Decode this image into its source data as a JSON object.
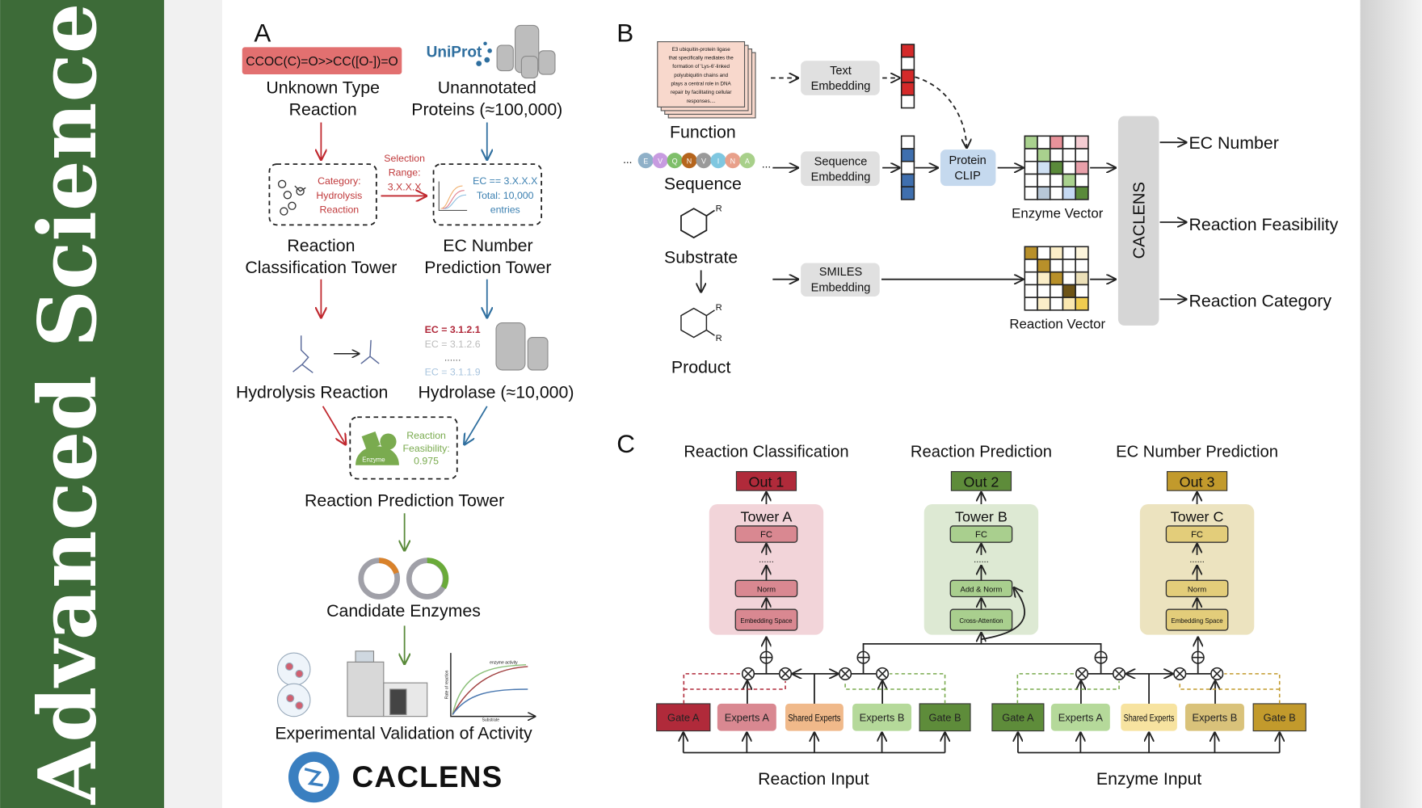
{
  "banner": {
    "title": "Advanced Science",
    "color": "#3d6b38"
  },
  "panel_a": {
    "letter": "A",
    "smiles": "CCOC(C)=O>>CC([O-])=O",
    "uniprot_logo": "UniProt",
    "unknown_line1": "Unknown Type",
    "unknown_line2": "Reaction",
    "unannotated_line1": "Unannotated",
    "unannotated_line2": "Proteins (≈100,000)",
    "category": [
      "Category:",
      "Hydrolysis",
      "Reaction"
    ],
    "selection": [
      "Selection",
      "Range:",
      "3.X.X.X"
    ],
    "ec_filter": [
      "EC == 3.X.X.X",
      "Total: 10,000",
      "entries"
    ],
    "rct_line1": "Reaction",
    "rct_line2": "Classification Tower",
    "ecpt_line1": "EC Number",
    "ecpt_line2": "Prediction Tower",
    "ec_list": [
      "EC = 3.1.2.1",
      "EC = 3.1.2.6",
      "......",
      "EC = 3.1.1.9"
    ],
    "hydrolysis": "Hydrolysis Reaction",
    "hydrolase": "Hydrolase (≈10,000)",
    "enzyme_label": "Enzyme",
    "feasibility": [
      "Reaction",
      "Feasibility:",
      "0.975"
    ],
    "rpt": "Reaction Prediction Tower",
    "candidates": "Candidate Enzymes",
    "plot_title": "enzyme activity",
    "plot_ylabel": "Rate of reaction",
    "plot_xlabel": "Substrate",
    "validation": "Experimental Validation of Activity",
    "logo": "CACLENS"
  },
  "panel_b": {
    "letter": "B",
    "function_text": [
      "E3 ubiquitin-protein ligase",
      "that specifically mediates the",
      "formation of 'Lys-6'-linked",
      "polyubiquitin chains and",
      "plays a central role in DNA",
      "repair by facilitating cellular",
      "responses...."
    ],
    "function": "Function",
    "residues": [
      "E",
      "V",
      "Q",
      "N",
      "V",
      "I",
      "N",
      "A"
    ],
    "residue_colors": [
      "#8fb0c8",
      "#c79be0",
      "#7fbf6a",
      "#b5651d",
      "#9a9a9a",
      "#7fc7e0",
      "#e8a08a",
      "#a8d08a"
    ],
    "ellipsis": "...",
    "sequence": "Sequence",
    "substrate": "Substrate",
    "product": "Product",
    "r_label": "R",
    "text_emb": [
      "Text",
      "Embedding"
    ],
    "seq_emb": [
      "Sequence",
      "Embedding"
    ],
    "smiles_emb": [
      "SMILES",
      "Embedding"
    ],
    "clip": [
      "Protein",
      "CLIP"
    ],
    "text_vector": [
      "#d42a2a",
      "#ffffff",
      "#d42a2a",
      "#d42a2a",
      "#ffffff"
    ],
    "seq_vector": [
      "#ffffff",
      "#3f6fae",
      "#ffffff",
      "#3f6fae",
      "#3f6fae"
    ],
    "enzyme_vector_label": "Enzyme Vector",
    "reaction_vector_label": "Reaction Vector",
    "enzyme_grid": [
      [
        "#a9d18e",
        "#ffffff",
        "#e8929a",
        "#ffffff",
        "#f4ccd2"
      ],
      [
        "#ffffff",
        "#a9d18e",
        "#ffffff",
        "#ffffff",
        "#ffffff"
      ],
      [
        "#ffffff",
        "#cfe0f3",
        "#5a8a3a",
        "#ffffff",
        "#e8a0aa"
      ],
      [
        "#ffffff",
        "#ffffff",
        "#ffffff",
        "#a9d18e",
        "#ffffff"
      ],
      [
        "#ffffff",
        "#b8c8d8",
        "#ffffff",
        "#c6daf3",
        "#5a8a3a"
      ]
    ],
    "reaction_grid": [
      [
        "#b8902a",
        "#ffffff",
        "#fbeec8",
        "#ffffff",
        "#fdf5dc"
      ],
      [
        "#ffffff",
        "#b8902a",
        "#ffffff",
        "#ffffff",
        "#ffffff"
      ],
      [
        "#ffffff",
        "#fbeec8",
        "#b8902a",
        "#ffffff",
        "#ece0b8"
      ],
      [
        "#ffffff",
        "#ffffff",
        "#ffffff",
        "#6e5416",
        "#ffffff"
      ],
      [
        "#ffffff",
        "#fbeec8",
        "#ffffff",
        "#fbe8b0",
        "#f0cc50"
      ]
    ],
    "caclens": "CACLENS",
    "outputs": [
      "EC Number",
      "Reaction Feasibility",
      "Reaction Category"
    ]
  },
  "panel_c": {
    "letter": "C",
    "tasks": [
      {
        "title": "Reaction Classification",
        "out": "Out 1",
        "tower": "Tower A",
        "layers": [
          "FC",
          "Norm",
          "Embedding Space"
        ],
        "out_color": "#b02a3a",
        "bg": "#f2d4d9",
        "layer_color": "#d98891"
      },
      {
        "title": "Reaction Prediction",
        "out": "Out 2",
        "tower": "Tower B",
        "layers": [
          "FC",
          "Add & Norm",
          "Cross-Attention"
        ],
        "out_color": "#5e8c3a",
        "bg": "#dde9d3",
        "layer_color": "#a9cf8e"
      },
      {
        "title": "EC Number Prediction",
        "out": "Out 3",
        "tower": "Tower C",
        "layers": [
          "FC",
          "Norm",
          "Embedding Space"
        ],
        "out_color": "#c29a2c",
        "bg": "#ece3bf",
        "layer_color": "#e3cd7a"
      }
    ],
    "dots": "......",
    "reaction_modules": [
      {
        "label": "Gate A",
        "color": "#b02a3a"
      },
      {
        "label": "Experts A",
        "color": "#d98891"
      },
      {
        "label": "Shared Experts",
        "color": "#f0b98a"
      },
      {
        "label": "Experts B",
        "color": "#b5d99a"
      },
      {
        "label": "Gate B",
        "color": "#5e8c3a"
      }
    ],
    "enzyme_modules": [
      {
        "label": "Gate A",
        "color": "#5e8c3a"
      },
      {
        "label": "Experts A",
        "color": "#b5d99a"
      },
      {
        "label": "Shared Experts",
        "color": "#f7e3a0"
      },
      {
        "label": "Experts B",
        "color": "#d9c27a"
      },
      {
        "label": "Gate B",
        "color": "#c29a2c"
      }
    ],
    "reaction_input": "Reaction Input",
    "enzyme_input": "Enzyme Input"
  }
}
